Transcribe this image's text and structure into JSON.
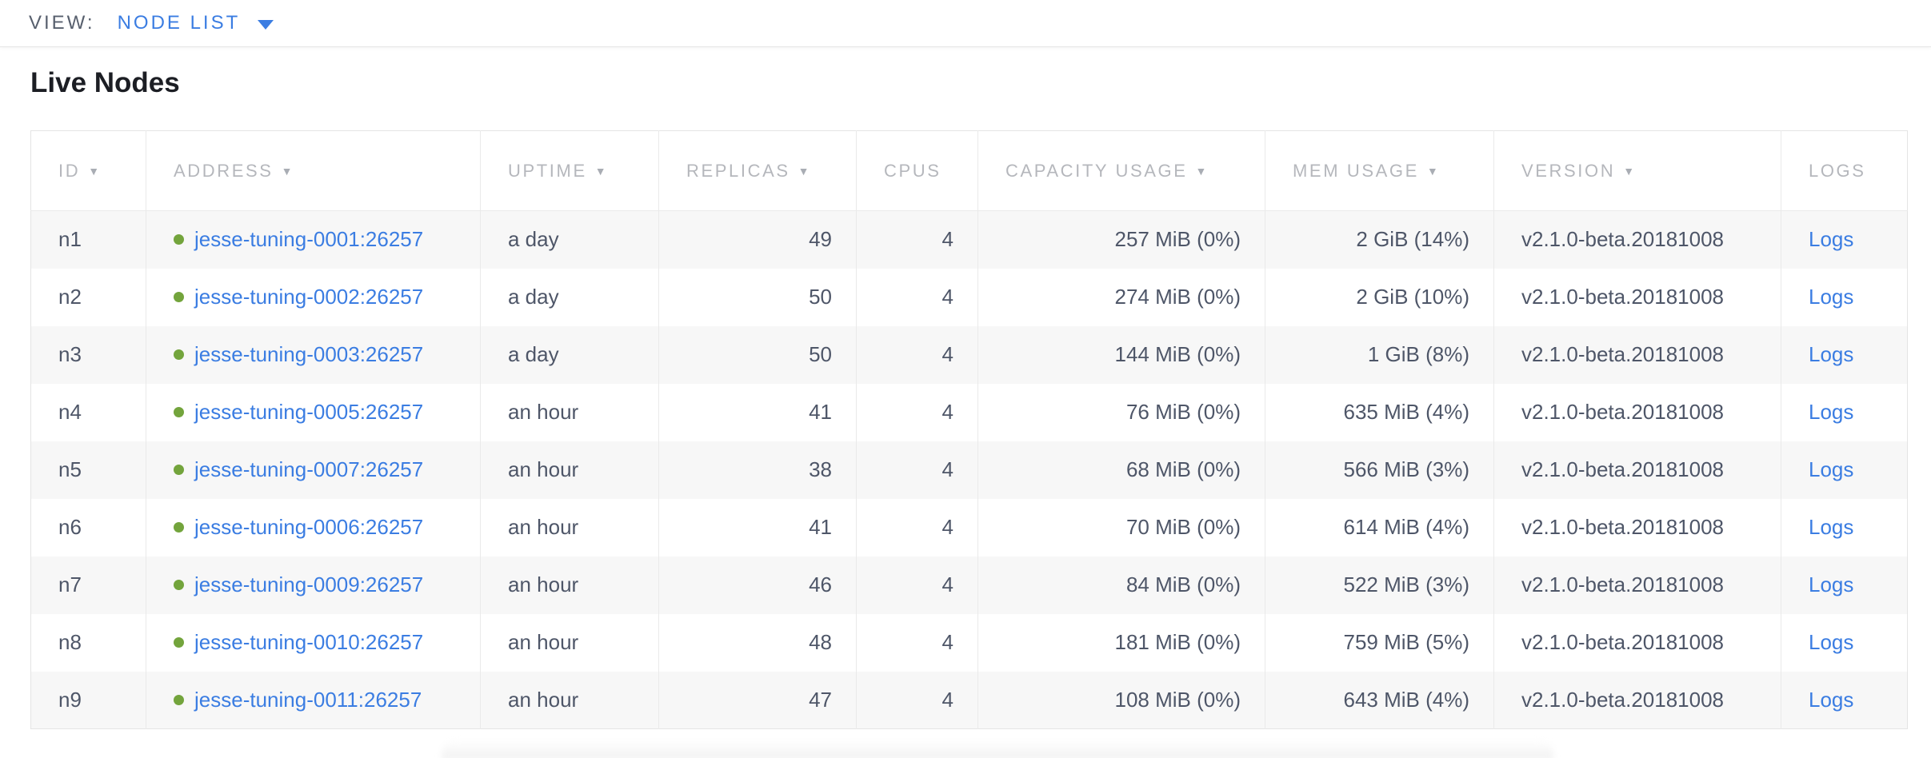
{
  "view_bar": {
    "label": "VIEW:",
    "selected_view": "NODE LIST"
  },
  "page": {
    "title": "Live Nodes"
  },
  "icons": {
    "sort_desc": "▼",
    "caret_down": "caret-down-icon",
    "node_health": "node-health-dot"
  },
  "colors": {
    "accent_blue": "#3b7de2",
    "healthy_green": "#73a43c",
    "header_gray": "#b5b7bc",
    "cell_text": "#4e5668",
    "row_stripe": "#f7f7f7"
  },
  "table": {
    "columns": [
      {
        "key": "id",
        "label": "ID",
        "sortable": true,
        "align": "left"
      },
      {
        "key": "address",
        "label": "ADDRESS",
        "sortable": true,
        "align": "left"
      },
      {
        "key": "uptime",
        "label": "UPTIME",
        "sortable": true,
        "align": "left"
      },
      {
        "key": "replicas",
        "label": "REPLICAS",
        "sortable": true,
        "align": "right"
      },
      {
        "key": "cpus",
        "label": "CPUS",
        "sortable": false,
        "align": "right"
      },
      {
        "key": "capacity",
        "label": "CAPACITY USAGE",
        "sortable": true,
        "align": "right"
      },
      {
        "key": "mem",
        "label": "MEM USAGE",
        "sortable": true,
        "align": "right"
      },
      {
        "key": "version",
        "label": "VERSION",
        "sortable": true,
        "align": "left"
      },
      {
        "key": "logs",
        "label": "LOGS",
        "sortable": false,
        "align": "left"
      }
    ],
    "rows": [
      {
        "id": "n1",
        "address": "jesse-tuning-0001:26257",
        "uptime": "a day",
        "replicas": "49",
        "cpus": "4",
        "capacity": "257 MiB (0%)",
        "mem": "2 GiB (14%)",
        "version": "v2.1.0-beta.20181008",
        "logs": "Logs"
      },
      {
        "id": "n2",
        "address": "jesse-tuning-0002:26257",
        "uptime": "a day",
        "replicas": "50",
        "cpus": "4",
        "capacity": "274 MiB (0%)",
        "mem": "2 GiB (10%)",
        "version": "v2.1.0-beta.20181008",
        "logs": "Logs"
      },
      {
        "id": "n3",
        "address": "jesse-tuning-0003:26257",
        "uptime": "a day",
        "replicas": "50",
        "cpus": "4",
        "capacity": "144 MiB (0%)",
        "mem": "1 GiB (8%)",
        "version": "v2.1.0-beta.20181008",
        "logs": "Logs"
      },
      {
        "id": "n4",
        "address": "jesse-tuning-0005:26257",
        "uptime": "an hour",
        "replicas": "41",
        "cpus": "4",
        "capacity": "76 MiB (0%)",
        "mem": "635 MiB (4%)",
        "version": "v2.1.0-beta.20181008",
        "logs": "Logs"
      },
      {
        "id": "n5",
        "address": "jesse-tuning-0007:26257",
        "uptime": "an hour",
        "replicas": "38",
        "cpus": "4",
        "capacity": "68 MiB (0%)",
        "mem": "566 MiB (3%)",
        "version": "v2.1.0-beta.20181008",
        "logs": "Logs"
      },
      {
        "id": "n6",
        "address": "jesse-tuning-0006:26257",
        "uptime": "an hour",
        "replicas": "41",
        "cpus": "4",
        "capacity": "70 MiB (0%)",
        "mem": "614 MiB (4%)",
        "version": "v2.1.0-beta.20181008",
        "logs": "Logs"
      },
      {
        "id": "n7",
        "address": "jesse-tuning-0009:26257",
        "uptime": "an hour",
        "replicas": "46",
        "cpus": "4",
        "capacity": "84 MiB (0%)",
        "mem": "522 MiB (3%)",
        "version": "v2.1.0-beta.20181008",
        "logs": "Logs"
      },
      {
        "id": "n8",
        "address": "jesse-tuning-0010:26257",
        "uptime": "an hour",
        "replicas": "48",
        "cpus": "4",
        "capacity": "181 MiB (0%)",
        "mem": "759 MiB (5%)",
        "version": "v2.1.0-beta.20181008",
        "logs": "Logs"
      },
      {
        "id": "n9",
        "address": "jesse-tuning-0011:26257",
        "uptime": "an hour",
        "replicas": "47",
        "cpus": "4",
        "capacity": "108 MiB (0%)",
        "mem": "643 MiB (4%)",
        "version": "v2.1.0-beta.20181008",
        "logs": "Logs"
      }
    ]
  }
}
